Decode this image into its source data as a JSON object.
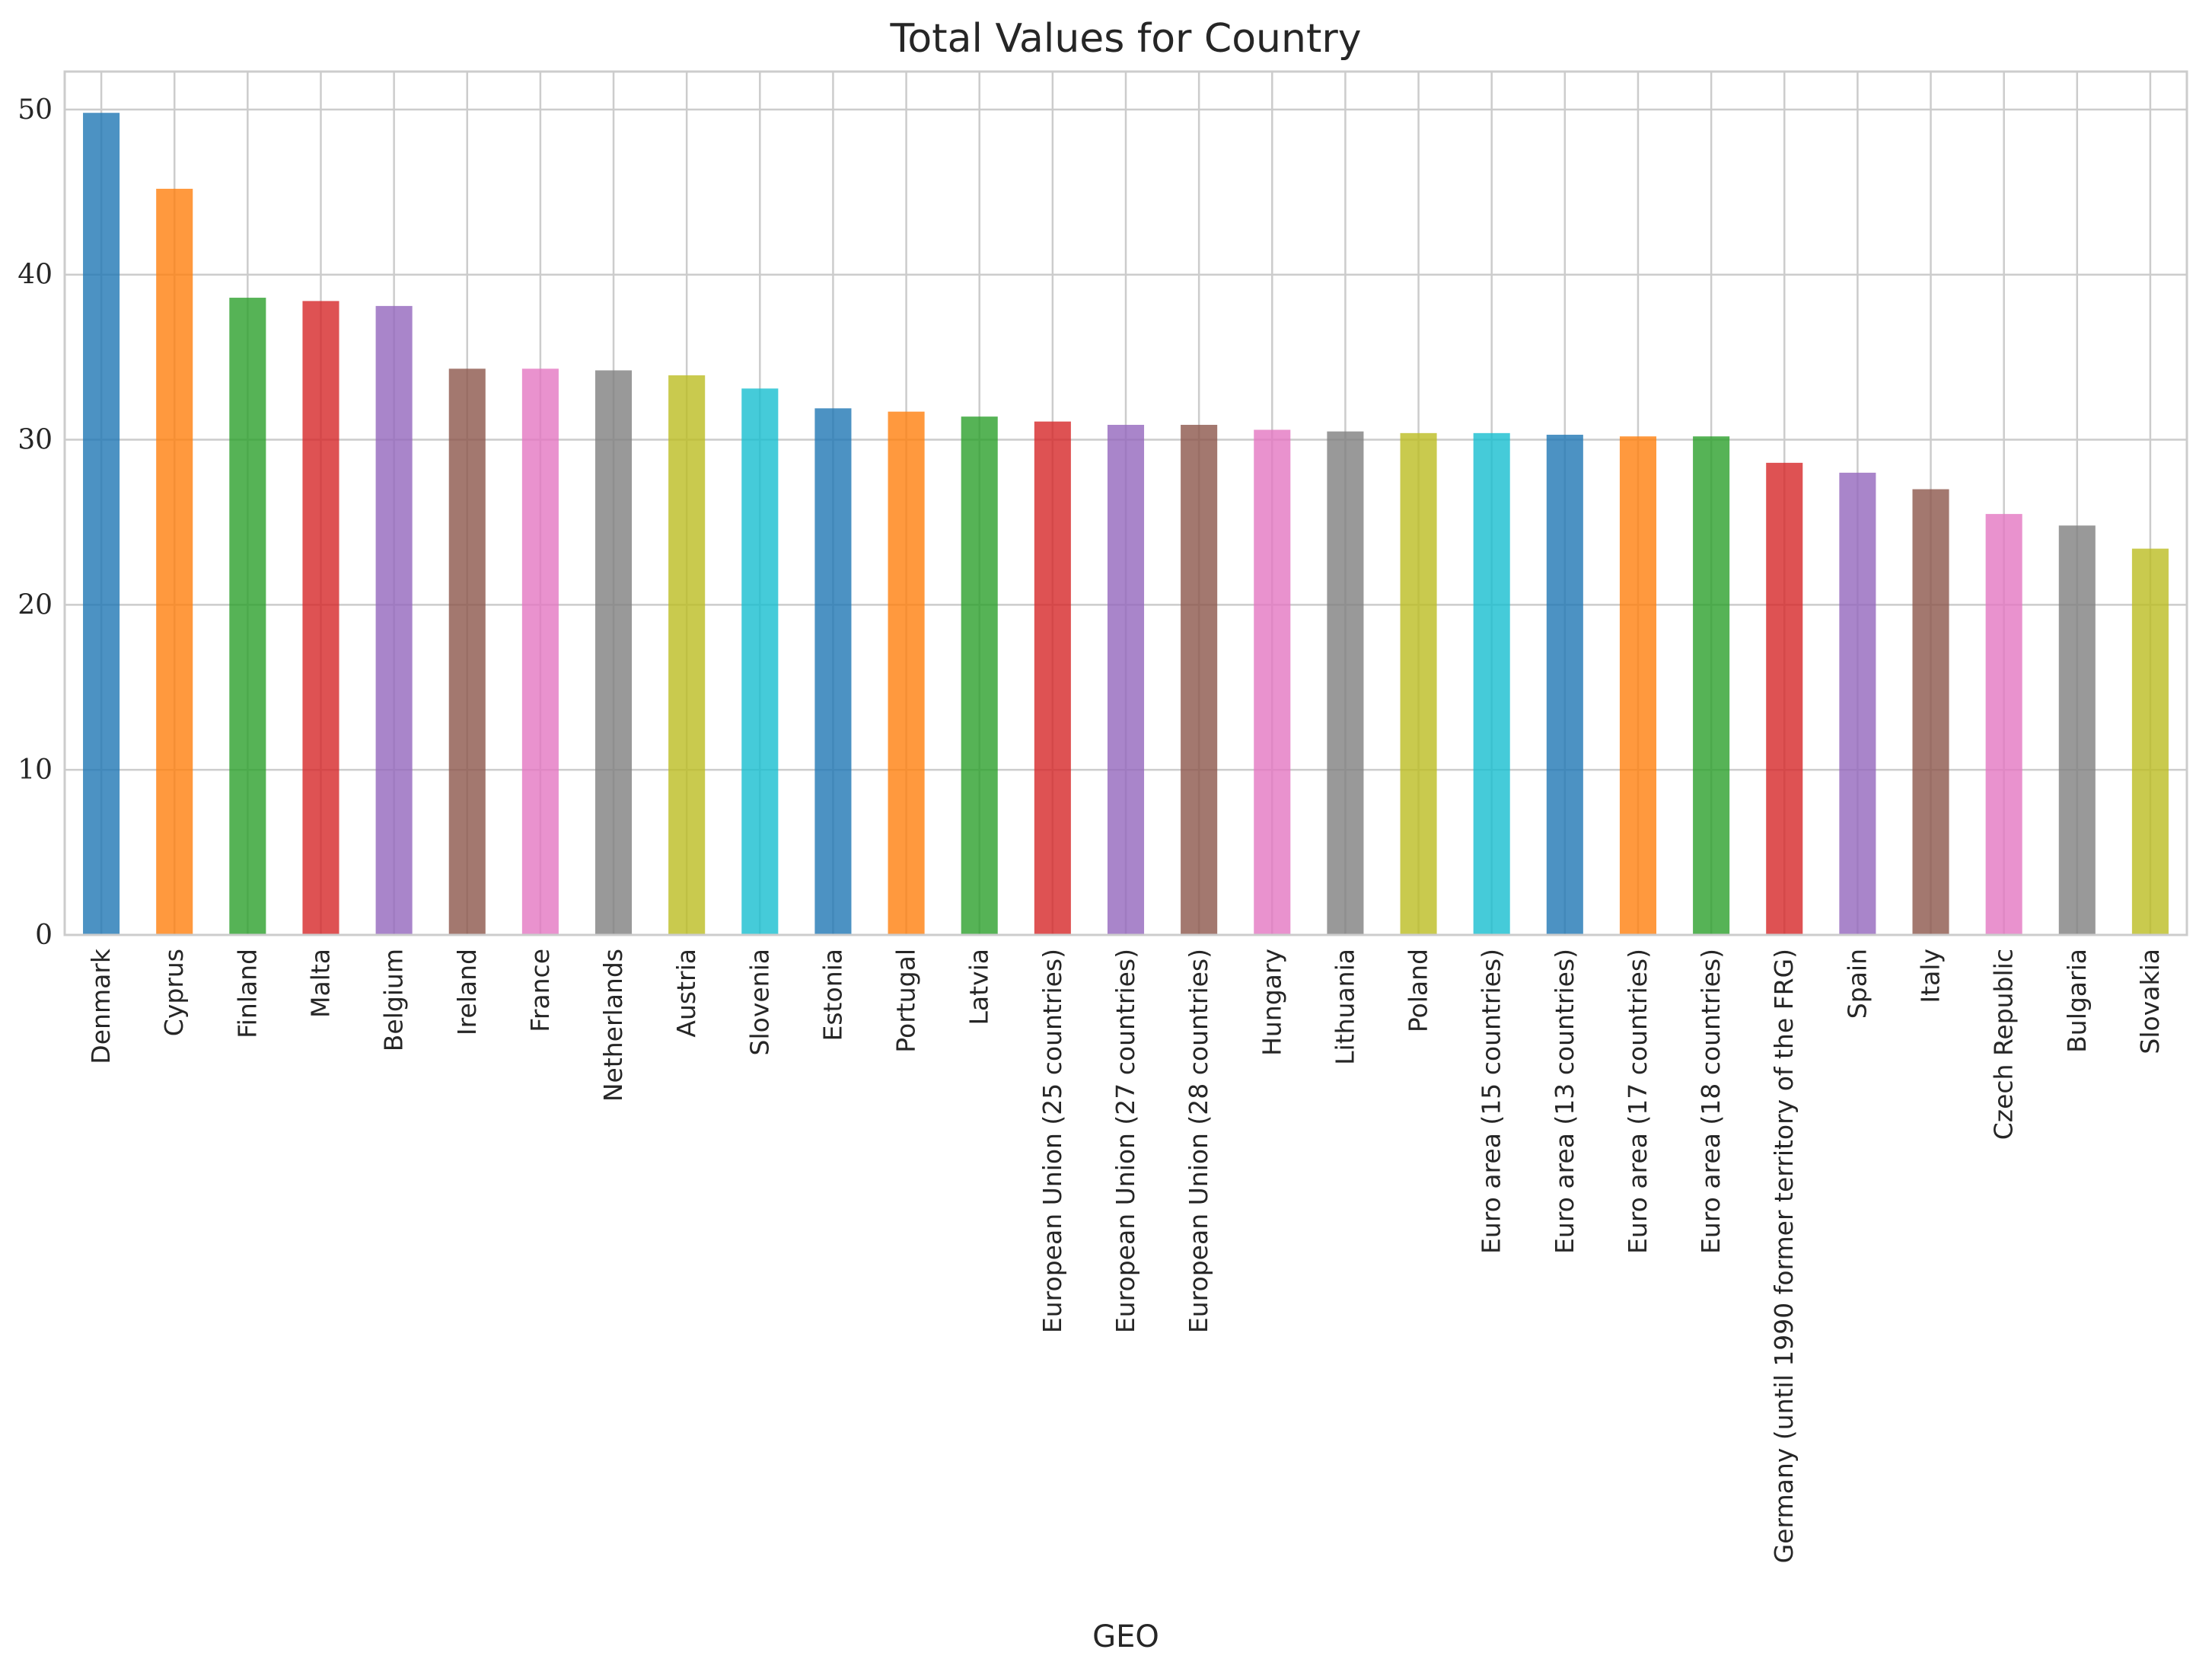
{
  "chart_data": {
    "type": "bar",
    "title": "Total Values for Country",
    "xlabel": "GEO",
    "ylabel": "",
    "ylim": [
      0,
      52.3
    ],
    "yticks": [
      "0",
      "10",
      "20",
      "30",
      "40",
      "50"
    ],
    "grid": true,
    "legend": "none",
    "categories": [
      "Denmark",
      "Cyprus",
      "Finland",
      "Malta",
      "Belgium",
      "Ireland",
      "France",
      "Netherlands",
      "Austria",
      "Slovenia",
      "Estonia",
      "Portugal",
      "Latvia",
      "European Union (25 countries)",
      "European Union (27 countries)",
      "European Union (28 countries)",
      "Hungary",
      "Lithuania",
      "Poland",
      "Euro area (15 countries)",
      "Euro area (13 countries)",
      "Euro area (17 countries)",
      "Euro area (18 countries)",
      "Germany (until 1990 former territory of the FRG)",
      "Spain",
      "Italy",
      "Czech Republic",
      "Bulgaria",
      "Slovakia"
    ],
    "values": [
      49.8,
      45.2,
      38.6,
      38.4,
      38.1,
      34.3,
      34.3,
      34.2,
      33.9,
      33.1,
      31.9,
      31.7,
      31.4,
      31.1,
      30.9,
      30.9,
      30.6,
      30.5,
      30.4,
      30.4,
      30.3,
      30.2,
      30.2,
      28.6,
      28.0,
      27.0,
      25.5,
      24.8,
      23.4
    ],
    "colors": [
      "#1f77b4",
      "#ff7f0e",
      "#2ca02c",
      "#d62728",
      "#9467bd",
      "#8c564b",
      "#e377c2",
      "#7f7f7f",
      "#bcbd22",
      "#17becf"
    ]
  }
}
